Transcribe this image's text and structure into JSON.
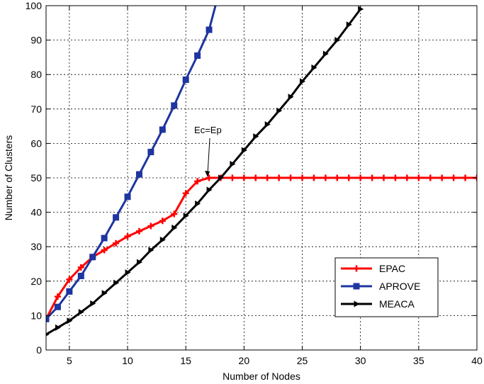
{
  "chart_data": {
    "type": "line",
    "xlabel": "Number of Nodes",
    "ylabel": "Number of Clusters",
    "xlim": [
      3,
      40
    ],
    "ylim": [
      0,
      100
    ],
    "xticks": [
      5,
      10,
      15,
      20,
      25,
      30,
      35,
      40
    ],
    "yticks": [
      0,
      10,
      20,
      30,
      40,
      50,
      60,
      70,
      80,
      90,
      100
    ],
    "grid": true,
    "legend_position": "lower-right",
    "series": [
      {
        "name": "EPAC",
        "color": "#ff0000",
        "marker": "plus",
        "x": [
          3,
          4,
          5,
          6,
          7,
          8,
          9,
          10,
          11,
          12,
          13,
          14,
          15,
          16,
          17,
          18,
          19,
          20,
          21,
          22,
          23,
          24,
          25,
          26,
          27,
          28,
          29,
          30,
          31,
          32,
          33,
          34,
          35,
          36,
          37,
          38,
          39,
          40
        ],
        "y": [
          9,
          15.5,
          20.5,
          24,
          27,
          29,
          31,
          33,
          34.5,
          36,
          37.5,
          39.5,
          45.5,
          49,
          50,
          50,
          50,
          50,
          50,
          50,
          50,
          50,
          50,
          50,
          50,
          50,
          50,
          50,
          50,
          50,
          50,
          50,
          50,
          50,
          50,
          50,
          50,
          50
        ]
      },
      {
        "name": "APROVE",
        "color": "#1f35a0",
        "marker": "square",
        "x": [
          3,
          4,
          5,
          6,
          7,
          8,
          9,
          10,
          11,
          12,
          13,
          14,
          15,
          16,
          17,
          17.55
        ],
        "y": [
          9,
          12.5,
          17,
          21.5,
          27,
          32.5,
          38.5,
          44.5,
          51,
          57.5,
          64,
          71,
          78.5,
          85.5,
          93,
          100
        ]
      },
      {
        "name": "MEACA",
        "color": "#000000",
        "marker": "triangle-right",
        "x": [
          3,
          4,
          5,
          6,
          7,
          8,
          9,
          10,
          11,
          12,
          13,
          14,
          15,
          16,
          17,
          18,
          19,
          20,
          21,
          22,
          23,
          24,
          25,
          26,
          27,
          28,
          29,
          30
        ],
        "y": [
          4.5,
          6.5,
          8.5,
          11,
          13.5,
          16.5,
          19.5,
          22.5,
          25.5,
          29,
          32,
          35.5,
          39,
          42.5,
          46.5,
          50,
          54,
          58,
          62,
          65.5,
          69.5,
          73.5,
          78,
          82,
          86,
          90,
          94.5,
          99
        ]
      }
    ],
    "annotations": [
      {
        "text": "Ec=Ep",
        "x": 17,
        "y": 50
      }
    ]
  }
}
